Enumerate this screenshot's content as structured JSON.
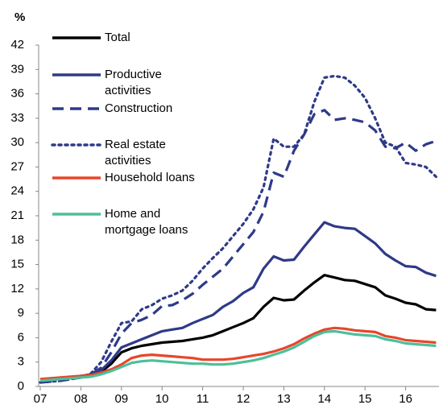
{
  "chart_data": {
    "type": "line",
    "y_label": "%",
    "categories": [
      "07",
      null,
      null,
      null,
      "08",
      null,
      null,
      null,
      "09",
      null,
      null,
      null,
      "10",
      null,
      null,
      null,
      "11",
      null,
      null,
      null,
      "12",
      null,
      null,
      null,
      "13",
      null,
      null,
      null,
      "14",
      null,
      null,
      null,
      "15",
      null,
      null,
      null,
      "16",
      null,
      null,
      null
    ],
    "ylim": [
      0,
      42
    ],
    "yticks": [
      0,
      3,
      6,
      9,
      12,
      15,
      18,
      21,
      24,
      27,
      30,
      33,
      36,
      39,
      42
    ],
    "legend": "top-left",
    "series": [
      {
        "name": "Total",
        "color": "#000000",
        "style": "solid",
        "values": [
          0.8,
          0.9,
          1.0,
          1.1,
          1.2,
          1.4,
          1.8,
          2.8,
          4.2,
          4.7,
          5.0,
          5.2,
          5.4,
          5.5,
          5.6,
          5.8,
          6.0,
          6.3,
          6.8,
          7.3,
          7.8,
          8.4,
          9.8,
          10.9,
          10.6,
          10.7,
          11.8,
          12.8,
          13.7,
          13.4,
          13.1,
          13.0,
          12.6,
          12.2,
          11.2,
          10.8,
          10.3,
          10.1,
          9.5,
          9.4
        ]
      },
      {
        "name": "Productive activities",
        "color": "#2e3a87",
        "style": "solid",
        "values": [
          0.8,
          0.9,
          1.0,
          1.1,
          1.3,
          1.5,
          2.0,
          3.2,
          4.8,
          5.3,
          5.8,
          6.3,
          6.8,
          7.0,
          7.2,
          7.8,
          8.3,
          8.8,
          9.8,
          10.5,
          11.5,
          12.2,
          14.5,
          16.0,
          15.5,
          15.6,
          17.2,
          18.7,
          20.2,
          19.7,
          19.5,
          19.4,
          18.5,
          17.6,
          16.3,
          15.5,
          14.8,
          14.7,
          14.0,
          13.6
        ]
      },
      {
        "name": "Construction",
        "color": "#2e3a87",
        "style": "dashed",
        "values": [
          0.5,
          0.6,
          0.7,
          0.9,
          1.1,
          1.5,
          2.3,
          4.2,
          6.5,
          7.8,
          8.2,
          8.8,
          9.9,
          10.0,
          10.6,
          11.4,
          12.5,
          13.5,
          14.5,
          16.0,
          17.5,
          19.0,
          21.5,
          26.3,
          25.8,
          29.0,
          31.0,
          33.5,
          34.0,
          32.8,
          33.0,
          32.8,
          32.5,
          31.5,
          29.5,
          29.3,
          30.0,
          29.0,
          29.8,
          30.2
        ]
      },
      {
        "name": "Real estate activities",
        "color": "#2e3a87",
        "style": "dotted",
        "values": [
          0.5,
          0.6,
          0.7,
          0.9,
          1.1,
          1.6,
          3.0,
          5.5,
          7.8,
          8.0,
          9.5,
          10.0,
          10.8,
          11.2,
          11.8,
          13.0,
          14.5,
          15.8,
          17.0,
          18.5,
          20.0,
          21.8,
          24.5,
          30.5,
          29.5,
          29.5,
          31.0,
          35.0,
          38.0,
          38.2,
          38.0,
          37.0,
          35.5,
          33.0,
          30.0,
          29.5,
          27.5,
          27.3,
          27.0,
          25.8
        ]
      },
      {
        "name": "Household loans",
        "color": "#e8462a",
        "style": "solid",
        "values": [
          0.9,
          1.0,
          1.1,
          1.2,
          1.3,
          1.4,
          1.7,
          2.1,
          2.7,
          3.5,
          3.8,
          3.9,
          3.8,
          3.7,
          3.6,
          3.5,
          3.3,
          3.3,
          3.3,
          3.4,
          3.6,
          3.8,
          4.0,
          4.3,
          4.7,
          5.2,
          5.9,
          6.5,
          7.0,
          7.2,
          7.1,
          6.9,
          6.8,
          6.7,
          6.2,
          6.0,
          5.7,
          5.6,
          5.5,
          5.4
        ]
      },
      {
        "name": "Home and mortgage loans",
        "color": "#4dbf9a",
        "style": "solid",
        "values": [
          0.7,
          0.8,
          0.9,
          1.0,
          1.1,
          1.2,
          1.5,
          1.9,
          2.4,
          2.9,
          3.1,
          3.2,
          3.1,
          3.0,
          2.9,
          2.8,
          2.8,
          2.7,
          2.7,
          2.8,
          3.0,
          3.2,
          3.5,
          3.9,
          4.3,
          4.8,
          5.5,
          6.2,
          6.7,
          6.8,
          6.6,
          6.4,
          6.3,
          6.2,
          5.8,
          5.6,
          5.3,
          5.2,
          5.1,
          5.0
        ]
      }
    ]
  }
}
